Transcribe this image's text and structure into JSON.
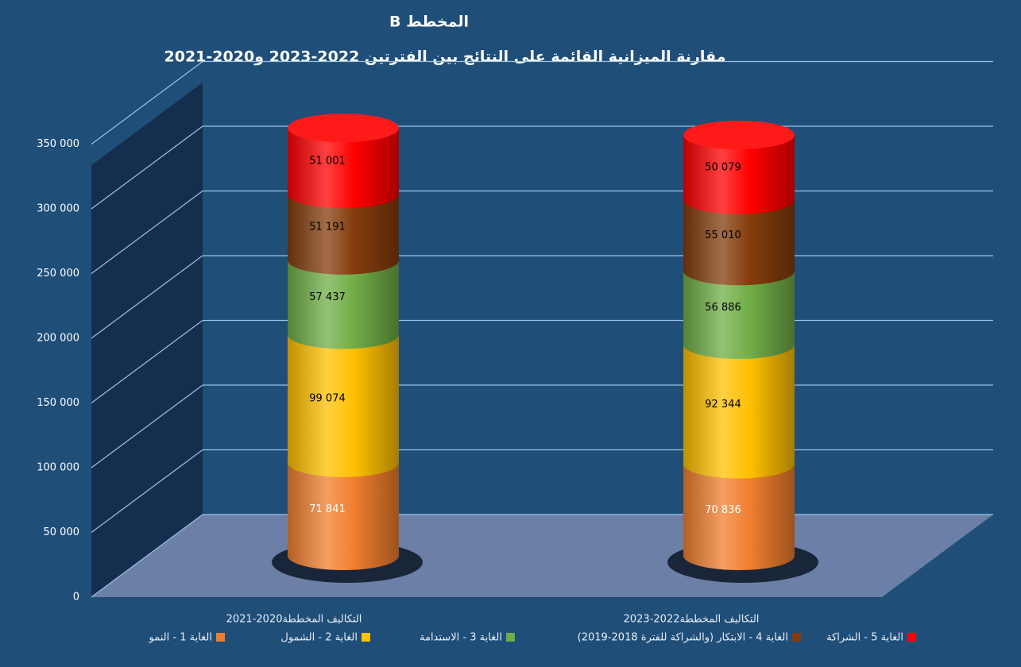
{
  "chart_data": {
    "type": "bar3d-cylinder-stacked",
    "title": "المخطط B",
    "subtitle": "مقارنة الميزانية القائمة على النتائج بين الفترتين 2022-2023 و2020-2021",
    "categories": [
      "التكاليف المخططة2020-2021",
      "التكاليف المخططة2022-2023"
    ],
    "series": [
      {
        "name": "الغاية 1 - النمو",
        "color": "#f07e2e",
        "values": [
          71841,
          70836
        ],
        "value_labels": [
          "71 841",
          "70 836"
        ]
      },
      {
        "name": "الغاية 2 - الشمول",
        "color": "#ffc000",
        "values": [
          99074,
          92344
        ],
        "value_labels": [
          "99 074",
          "92 344"
        ]
      },
      {
        "name": "الغاية 3 - الاستدامة",
        "color": "#70ad47",
        "values": [
          57437,
          56886
        ],
        "value_labels": [
          "57 437",
          "56 886"
        ]
      },
      {
        "name": "الغاية 4 - الابتكار (والشراكة للفترة 2018-2019)",
        "color": "#843c0c",
        "values": [
          51191,
          55010
        ],
        "value_labels": [
          "51 191",
          "55 010"
        ]
      },
      {
        "name": "الغاية 5 - الشراكة",
        "color": "#ff0000",
        "values": [
          51001,
          50079
        ],
        "value_labels": [
          "51 001",
          "50 079"
        ]
      }
    ],
    "ylim": [
      0,
      400000
    ],
    "yticks": [
      0,
      {
        "value": 50000,
        "label": "50 000"
      },
      {
        "value": 100000,
        "label": "100 000"
      },
      {
        "value": 150000,
        "label": "150 000"
      },
      {
        "value": 200000,
        "label": "200 000"
      },
      {
        "value": 250000,
        "label": "250 000"
      },
      {
        "value": 300000,
        "label": "300 000"
      },
      {
        "value": 350000,
        "label": "350 000"
      }
    ],
    "grid": true,
    "stacked": true,
    "legend": "bottom"
  }
}
